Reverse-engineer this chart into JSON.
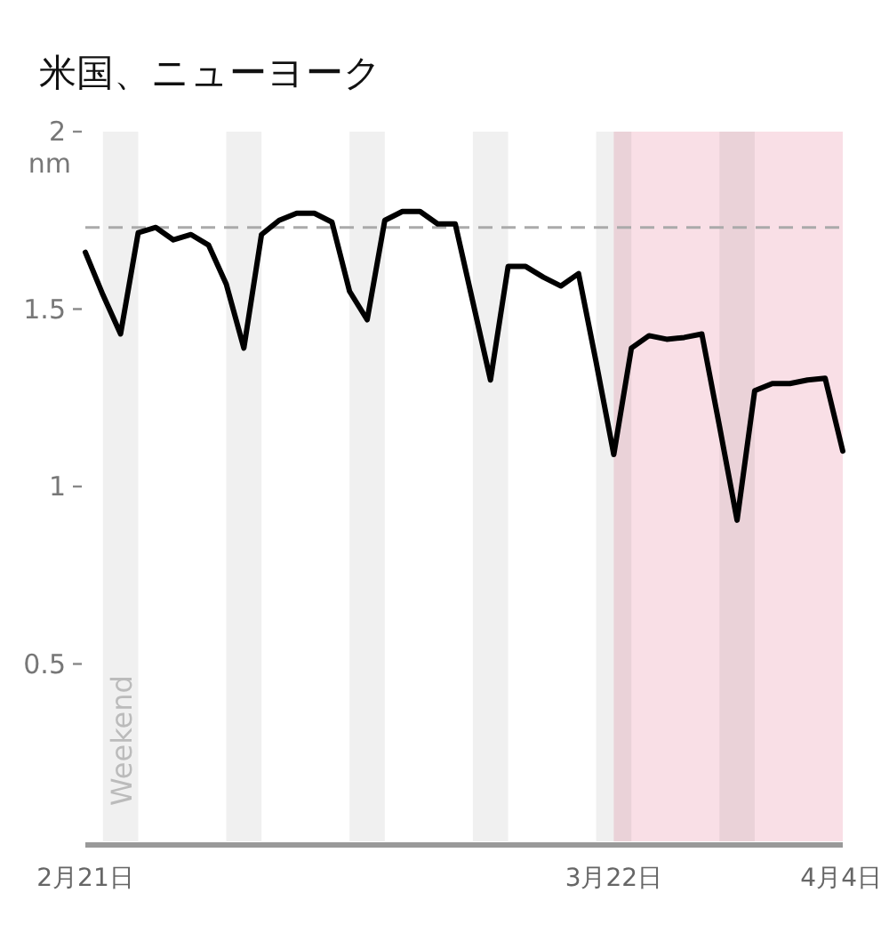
{
  "chart_data": {
    "type": "line",
    "title": "米国、ニューヨーク",
    "ylabel": "nm",
    "x": [
      "--02-21",
      "--02-22",
      "--02-23",
      "--02-24",
      "--02-25",
      "--02-26",
      "--02-27",
      "--02-28",
      "--02-29",
      "--03-01",
      "--03-02",
      "--03-03",
      "--03-04",
      "--03-05",
      "--03-06",
      "--03-07",
      "--03-08",
      "--03-09",
      "--03-10",
      "--03-11",
      "--03-12",
      "--03-13",
      "--03-14",
      "--03-15",
      "--03-16",
      "--03-17",
      "--03-18",
      "--03-19",
      "--03-20",
      "--03-21",
      "--03-22",
      "--03-23",
      "--03-24",
      "--03-25",
      "--03-26",
      "--03-27",
      "--03-28",
      "--03-29",
      "--03-30",
      "--03-31",
      "--04-01",
      "--04-02",
      "--04-03",
      "--04-04"
    ],
    "series": [
      {
        "color": "#000000",
        "values": [
          1.66,
          1.54,
          1.43,
          1.715,
          1.73,
          1.695,
          1.71,
          1.68,
          1.57,
          1.39,
          1.71,
          1.75,
          1.77,
          1.77,
          1.745,
          1.55,
          1.47,
          1.75,
          1.775,
          1.775,
          1.74,
          1.74,
          1.52,
          1.3,
          1.62,
          1.62,
          1.59,
          1.565,
          1.6,
          1.35,
          1.09,
          1.39,
          1.425,
          1.415,
          1.42,
          1.43,
          1.17,
          0.905,
          1.27,
          1.29,
          1.29,
          1.3,
          1.305,
          1.1
        ]
      }
    ],
    "xlim": [
      "--02-21",
      "--04-04"
    ],
    "xticks": [
      {
        "value": "--02-21",
        "label": "2月21日"
      },
      {
        "value": "--03-22",
        "label": "3月22日"
      },
      {
        "value": "--04-04",
        "label": "4月4日"
      }
    ],
    "ylim": [
      0,
      2
    ],
    "yticks": [
      0.5,
      1,
      1.5,
      2
    ],
    "ref_lines": [
      {
        "axis": "y",
        "value": 1.73,
        "color": "#aaaaaa",
        "line_style": "dashed"
      }
    ],
    "bands": [
      {
        "axis": "x",
        "from": "--02-22",
        "to": "--02-24",
        "color": "#f0f0f0"
      },
      {
        "axis": "x",
        "from": "--02-29",
        "to": "--03-02",
        "color": "#f0f0f0"
      },
      {
        "axis": "x",
        "from": "--03-07",
        "to": "--03-09",
        "color": "#f0f0f0"
      },
      {
        "axis": "x",
        "from": "--03-14",
        "to": "--03-16",
        "color": "#f0f0f0"
      },
      {
        "axis": "x",
        "from": "--03-21",
        "to": "--03-23",
        "color": "#f0f0f0"
      },
      {
        "axis": "x",
        "from": "--03-28",
        "to": "--03-30",
        "color": "#f0f0f0"
      },
      {
        "axis": "x",
        "from": "--03-22",
        "to": "--04-04",
        "color": "#f9dfe6"
      }
    ],
    "annotations": [
      "Weekend"
    ],
    "marker": "none",
    "line_style": "solid",
    "grid": false
  }
}
